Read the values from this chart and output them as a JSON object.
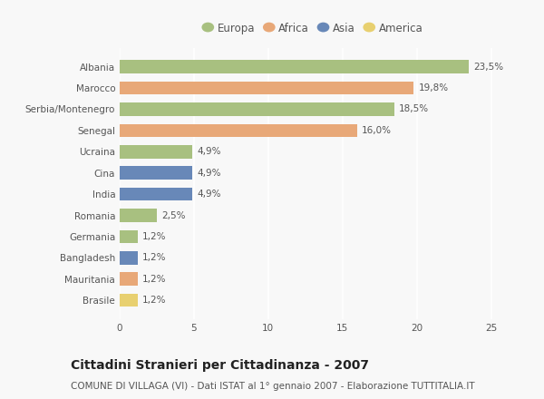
{
  "categories": [
    "Albania",
    "Marocco",
    "Serbia/Montenegro",
    "Senegal",
    "Ucraina",
    "Cina",
    "India",
    "Romania",
    "Germania",
    "Bangladesh",
    "Mauritania",
    "Brasile"
  ],
  "values": [
    23.5,
    19.8,
    18.5,
    16.0,
    4.9,
    4.9,
    4.9,
    2.5,
    1.2,
    1.2,
    1.2,
    1.2
  ],
  "labels": [
    "23,5%",
    "19,8%",
    "18,5%",
    "16,0%",
    "4,9%",
    "4,9%",
    "4,9%",
    "2,5%",
    "1,2%",
    "1,2%",
    "1,2%",
    "1,2%"
  ],
  "continents": [
    "Europa",
    "Africa",
    "Europa",
    "Africa",
    "Europa",
    "Asia",
    "Asia",
    "Europa",
    "Europa",
    "Asia",
    "Africa",
    "America"
  ],
  "colors": {
    "Europa": "#a8c080",
    "Africa": "#e8a878",
    "Asia": "#6888b8",
    "America": "#e8d070"
  },
  "legend_order": [
    "Europa",
    "Africa",
    "Asia",
    "America"
  ],
  "xlim": [
    0,
    26
  ],
  "xticks": [
    0,
    5,
    10,
    15,
    20,
    25
  ],
  "title": "Cittadini Stranieri per Cittadinanza - 2007",
  "subtitle": "COMUNE DI VILLAGA (VI) - Dati ISTAT al 1° gennaio 2007 - Elaborazione TUTTITALIA.IT",
  "background_color": "#f8f8f8",
  "grid_color": "#ffffff",
  "bar_height": 0.62,
  "title_fontsize": 10,
  "subtitle_fontsize": 7.5,
  "label_fontsize": 7.5,
  "tick_fontsize": 7.5,
  "legend_fontsize": 8.5
}
